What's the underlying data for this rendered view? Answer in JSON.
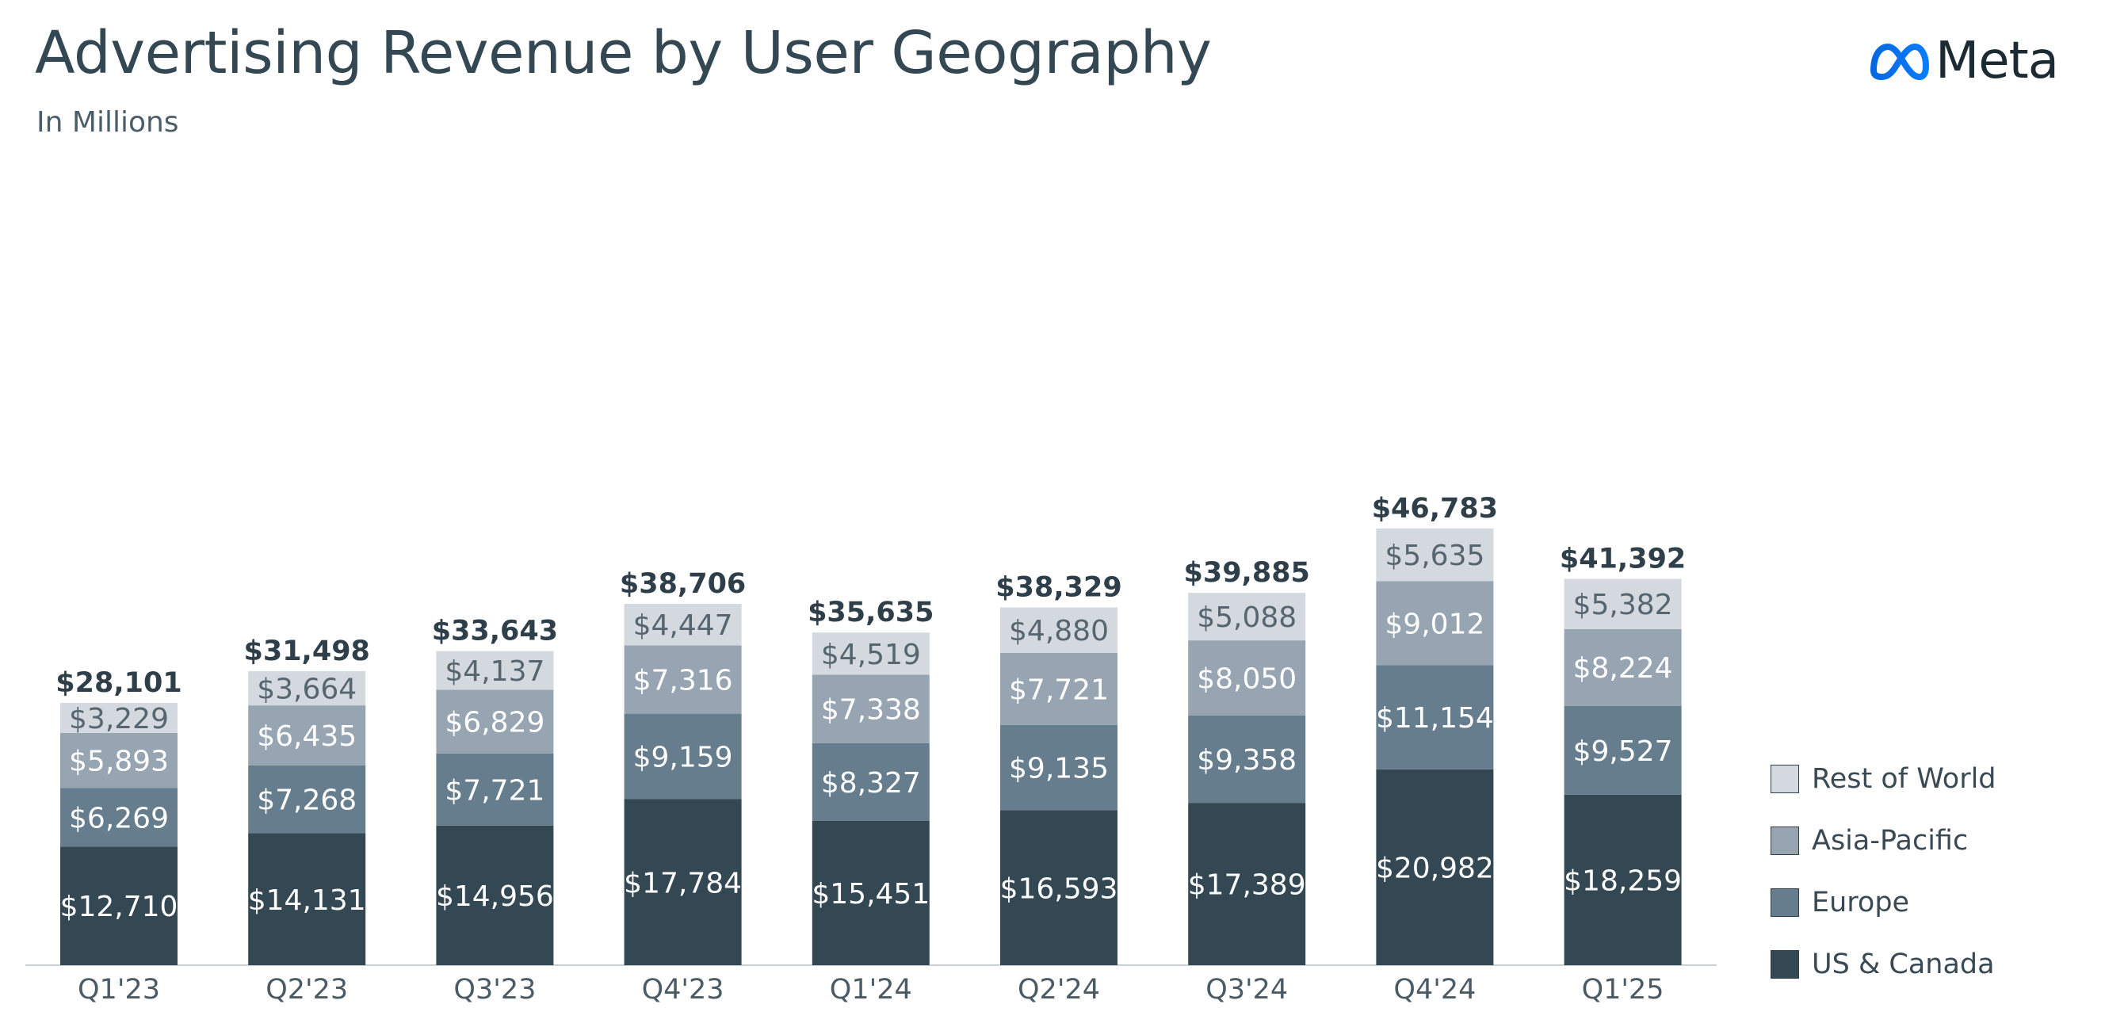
{
  "header": {
    "title": "Advertising Revenue by User Geography",
    "subtitle": "In Millions",
    "logo_text": "Meta"
  },
  "chart_data": {
    "type": "bar",
    "stacked": true,
    "title": "Advertising Revenue by User Geography",
    "subtitle": "In Millions",
    "categories": [
      "Q1'23",
      "Q2'23",
      "Q3'23",
      "Q4'23",
      "Q1'24",
      "Q2'24",
      "Q3'24",
      "Q4'24",
      "Q1'25"
    ],
    "series": [
      {
        "name": "US & Canada",
        "color": "#344854",
        "label_color": "#ffffff",
        "values": [
          12710,
          14131,
          14956,
          17784,
          15451,
          16593,
          17389,
          20982,
          18259
        ],
        "labels": [
          "$12,710",
          "$14,131",
          "$14,956",
          "$17,784",
          "$15,451",
          "$16,593",
          "$17,389",
          "$20,982",
          "$18,259"
        ]
      },
      {
        "name": "Europe",
        "color": "#667d8e",
        "label_color": "#ffffff",
        "values": [
          6269,
          7268,
          7721,
          9159,
          8327,
          9135,
          9358,
          11154,
          9527
        ],
        "labels": [
          "$6,269",
          "$7,268",
          "$7,721",
          "$9,159",
          "$8,327",
          "$9,135",
          "$9,358",
          "$11,154",
          "$9,527"
        ]
      },
      {
        "name": "Asia-Pacific",
        "color": "#97a5b2",
        "label_color": "#ffffff",
        "values": [
          5893,
          6435,
          6829,
          7316,
          7338,
          7721,
          8050,
          9012,
          8224
        ],
        "labels": [
          "$5,893",
          "$6,435",
          "$6,829",
          "$7,316",
          "$7,338",
          "$7,721",
          "$8,050",
          "$9,012",
          "$8,224"
        ]
      },
      {
        "name": "Rest of World",
        "color": "#d3d9de",
        "label_color": "#56656f",
        "values": [
          3229,
          3664,
          4137,
          4447,
          4519,
          4880,
          5088,
          5635,
          5382
        ],
        "labels": [
          "$3,229",
          "$3,664",
          "$4,137",
          "$4,447",
          "$4,519",
          "$4,880",
          "$5,088",
          "$5,635",
          "$5,382"
        ]
      }
    ],
    "totals": [
      28101,
      31498,
      33643,
      38706,
      35635,
      38329,
      39885,
      46783,
      41392
    ],
    "total_labels": [
      "$28,101",
      "$31,498",
      "$33,643",
      "$38,706",
      "$35,635",
      "$38,329",
      "$39,885",
      "$46,783",
      "$41,392"
    ],
    "xlabel": "",
    "ylabel": "",
    "ylim": [
      0,
      50000
    ],
    "grid": false,
    "legend": {
      "position": "right-bottom",
      "items": [
        "Rest of World",
        "Asia-Pacific",
        "Europe",
        "US & Canada"
      ],
      "colors": [
        "#d3d9de",
        "#97a5b2",
        "#667d8e",
        "#344854"
      ]
    }
  }
}
